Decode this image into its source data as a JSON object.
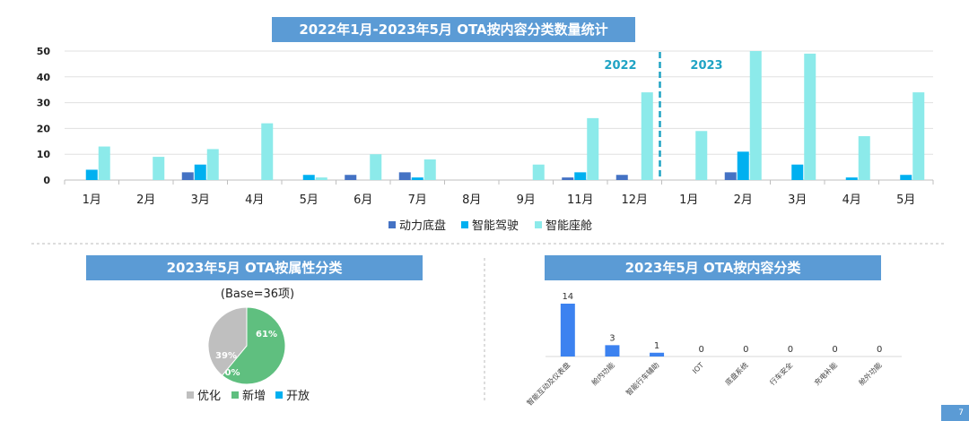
{
  "titles": {
    "main": "2022年1月-2023年5月 OTA按内容分类数量统计",
    "pie": "2023年5月 OTA按属性分类",
    "bar2": "2023年5月 OTA按内容分类"
  },
  "page_number": "7",
  "chart_data": [
    {
      "type": "bar",
      "title": "2022年1月-2023年5月 OTA按内容分类数量统计",
      "categories": [
        "1月",
        "2月",
        "3月",
        "4月",
        "5月",
        "6月",
        "7月",
        "8月",
        "9月",
        "11月",
        "12月",
        "1月",
        "2月",
        "3月",
        "4月",
        "5月"
      ],
      "year_labels": [
        "2022",
        "2023"
      ],
      "ylim": [
        0,
        50
      ],
      "yticks": [
        0,
        10,
        20,
        30,
        40,
        50
      ],
      "series": [
        {
          "name": "动力底盘",
          "color": "#4472c4",
          "values": [
            0,
            0,
            3,
            0,
            0,
            2,
            3,
            0,
            0,
            1,
            2,
            0,
            3,
            0,
            0,
            0
          ]
        },
        {
          "name": "智能驾驶",
          "color": "#00b0f0",
          "values": [
            4,
            0,
            6,
            0,
            2,
            0,
            1,
            0,
            0,
            3,
            0,
            0,
            11,
            6,
            1,
            2
          ]
        },
        {
          "name": "智能座舱",
          "color": "#8ceaea",
          "values": [
            13,
            9,
            12,
            22,
            1,
            10,
            8,
            0,
            6,
            24,
            34,
            19,
            50,
            49,
            17,
            34
          ]
        }
      ]
    },
    {
      "type": "pie",
      "title": "2023年5月 OTA按属性分类",
      "base_label": "(Base=36项)",
      "slices": [
        {
          "name": "优化",
          "value": 39,
          "label": "39%",
          "color": "#bfbfbf"
        },
        {
          "name": "新增",
          "value": 61,
          "label": "61%",
          "color": "#5fbf7f"
        },
        {
          "name": "开放",
          "value": 0,
          "label": "0%",
          "color": "#00b0f0"
        }
      ]
    },
    {
      "type": "bar",
      "title": "2023年5月 OTA按内容分类",
      "categories": [
        "智能互动及仪表盘",
        "舱内功能",
        "智能行车辅助",
        "IOT",
        "底盘系统",
        "行车安全",
        "充电补能",
        "舱外功能"
      ],
      "values": [
        14,
        3,
        1,
        0,
        0,
        0,
        0,
        0
      ],
      "ylim": [
        0,
        14
      ],
      "color": "#3c82f0"
    }
  ]
}
